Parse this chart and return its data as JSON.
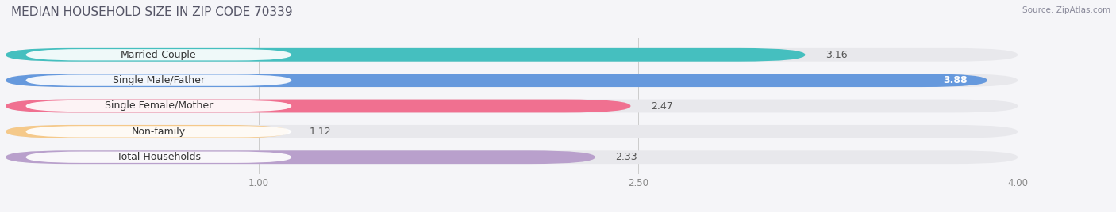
{
  "title": "MEDIAN HOUSEHOLD SIZE IN ZIP CODE 70339",
  "source": "Source: ZipAtlas.com",
  "categories": [
    "Married-Couple",
    "Single Male/Father",
    "Single Female/Mother",
    "Non-family",
    "Total Households"
  ],
  "values": [
    3.16,
    3.88,
    2.47,
    1.12,
    2.33
  ],
  "bar_colors": [
    "#45bfbf",
    "#6699dd",
    "#f07090",
    "#f5c98a",
    "#b9a0cc"
  ],
  "bar_bg_color": "#e8e8ec",
  "xlim": [
    0.0,
    4.3
  ],
  "xdata_max": 4.0,
  "xticks": [
    1.0,
    2.5,
    4.0
  ],
  "xtick_labels": [
    "1.00",
    "2.50",
    "4.00"
  ],
  "title_fontsize": 11,
  "label_fontsize": 9,
  "value_fontsize": 9,
  "background_color": "#f5f5f8",
  "bar_height": 0.52,
  "value_threshold": 3.5
}
